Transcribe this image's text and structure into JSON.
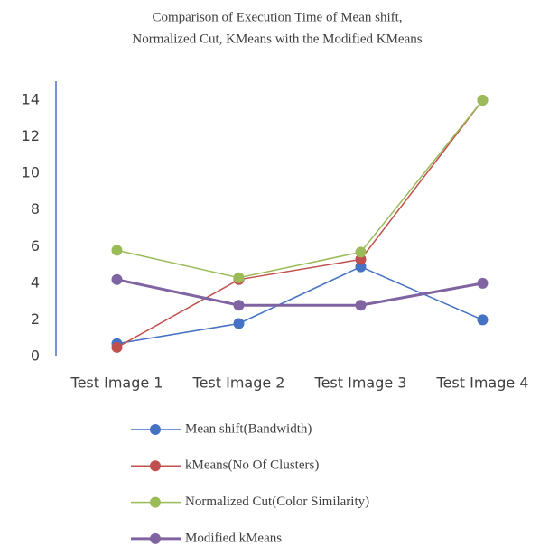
{
  "chart_data": {
    "type": "line",
    "title": [
      "Comparison of Execution Time of Mean shift,",
      "Normalized Cut, KMeans with the Modified KMeans"
    ],
    "categories": [
      "Test Image 1",
      "Test Image 2",
      "Test Image 3",
      "Test Image 4"
    ],
    "series": [
      {
        "name": "Mean shift(Bandwidth)",
        "color": "#4472c4",
        "values": [
          0.7,
          1.8,
          4.9,
          2.0
        ]
      },
      {
        "name": "kMeans(No Of Clusters)",
        "color": "#c0504d",
        "values": [
          0.5,
          4.2,
          5.3,
          14
        ]
      },
      {
        "name": "Normalized Cut(Color Similarity)",
        "color": "#9bbb59",
        "values": [
          5.8,
          4.3,
          5.7,
          14
        ]
      },
      {
        "name": "Modified kMeans",
        "color": "#8064a2",
        "values": [
          4.2,
          2.8,
          2.8,
          4.0
        ]
      }
    ],
    "ylim": [
      0,
      14
    ],
    "yticks": [
      0,
      2,
      4,
      6,
      8,
      10,
      12,
      14
    ],
    "grid": false,
    "legend": "bottom"
  }
}
